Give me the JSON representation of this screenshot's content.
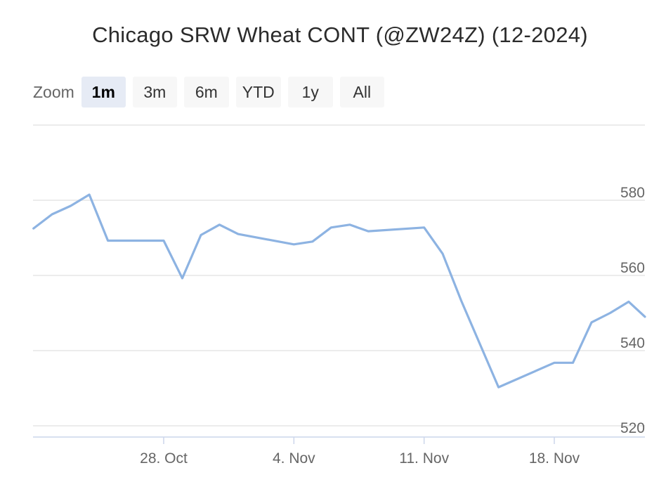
{
  "title": "Chicago SRW Wheat CONT (@ZW24Z) (12-2024)",
  "zoom": {
    "label": "Zoom",
    "buttons": [
      "1m",
      "3m",
      "6m",
      "YTD",
      "1y",
      "All"
    ],
    "active": "1m"
  },
  "colors": {
    "line": "#8db3e2",
    "grid": "#e6e6e6",
    "axis_text": "#666666"
  },
  "chart_data": {
    "type": "line",
    "title": "Chicago SRW Wheat CONT (@ZW24Z) (12-2024)",
    "xlabel": "",
    "ylabel": "",
    "x_ticks": [
      "28. Oct",
      "4. Nov",
      "11. Nov",
      "18. Nov"
    ],
    "y_ticks": [
      520,
      540,
      560,
      580
    ],
    "ylim": [
      517,
      600
    ],
    "grid": true,
    "series": [
      {
        "values": [
          {
            "x": "2024-10-21",
            "y": 572.5
          },
          {
            "x": "2024-10-22",
            "y": 576.25
          },
          {
            "x": "2024-10-23",
            "y": 578.5
          },
          {
            "x": "2024-10-24",
            "y": 581.5
          },
          {
            "x": "2024-10-25",
            "y": 569.25
          },
          {
            "x": "2024-10-28",
            "y": 569.25
          },
          {
            "x": "2024-10-29",
            "y": 559.25
          },
          {
            "x": "2024-10-30",
            "y": 570.75
          },
          {
            "x": "2024-10-31",
            "y": 573.5
          },
          {
            "x": "2024-11-01",
            "y": 571.0
          },
          {
            "x": "2024-11-04",
            "y": 568.25
          },
          {
            "x": "2024-11-05",
            "y": 569.0
          },
          {
            "x": "2024-11-06",
            "y": 572.75
          },
          {
            "x": "2024-11-07",
            "y": 573.5
          },
          {
            "x": "2024-11-08",
            "y": 571.75
          },
          {
            "x": "2024-11-11",
            "y": 572.75
          },
          {
            "x": "2024-11-12",
            "y": 565.75
          },
          {
            "x": "2024-11-13",
            "y": 553.25
          },
          {
            "x": "2024-11-14",
            "y": 541.75
          },
          {
            "x": "2024-11-15",
            "y": 530.25
          },
          {
            "x": "2024-11-18",
            "y": 536.75
          },
          {
            "x": "2024-11-19",
            "y": 536.75
          },
          {
            "x": "2024-11-20",
            "y": 547.5
          },
          {
            "x": "2024-11-21",
            "y": 550.0
          },
          {
            "x": "2024-11-22",
            "y": 553.0
          },
          {
            "x": "2024-11-25",
            "y": 549.0
          }
        ]
      }
    ]
  }
}
